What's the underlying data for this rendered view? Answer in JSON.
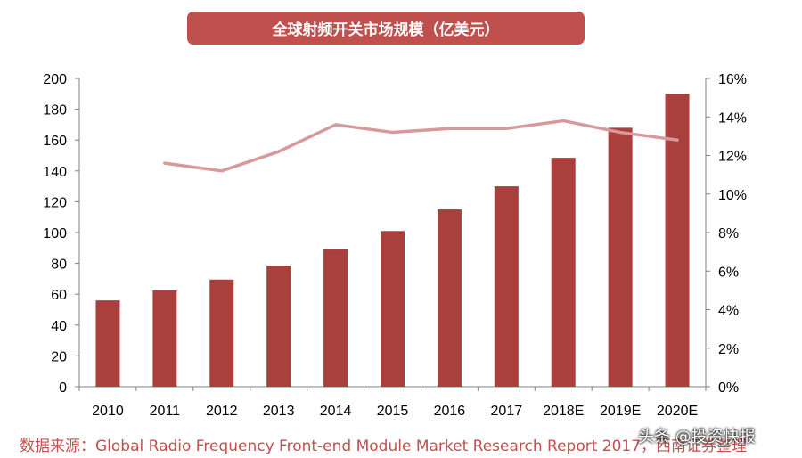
{
  "chart_data": {
    "type": "bar",
    "title": "全球射频开关市场规模（亿美元）",
    "categories": [
      "2010",
      "2011",
      "2012",
      "2013",
      "2014",
      "2015",
      "2016",
      "2017",
      "2018E",
      "2019E",
      "2020E"
    ],
    "series": [
      {
        "values": [
          56,
          62.5,
          69.5,
          78.5,
          89,
          101,
          115,
          130,
          148.5,
          168,
          190
        ],
        "color": "#a9403d",
        "axis": "left"
      },
      {
        "type": "line",
        "values": [
          null,
          11.6,
          11.2,
          12.2,
          13.6,
          13.2,
          13.4,
          13.4,
          13.8,
          13.2,
          12.8
        ],
        "color": "#d8999b",
        "axis": "right"
      }
    ],
    "ylim": [
      0,
      200
    ],
    "yticks": [
      "0",
      "20",
      "40",
      "60",
      "80",
      "100",
      "120",
      "140",
      "160",
      "180",
      "200"
    ],
    "y2lim": [
      0,
      16
    ],
    "y2ticks": [
      "0%",
      "2%",
      "4%",
      "6%",
      "8%",
      "10%",
      "12%",
      "14%",
      "16%"
    ],
    "grid": false,
    "legend": "none"
  },
  "source_text": "数据来源：Global Radio Frequency Front-end Module Market Research Report 2017，西南证券整理",
  "watermark_text": "头条 @投资快报",
  "colors": {
    "accent": "#c0504d",
    "bar": "#a9403d",
    "line": "#d8999b",
    "axis": "#808080"
  }
}
